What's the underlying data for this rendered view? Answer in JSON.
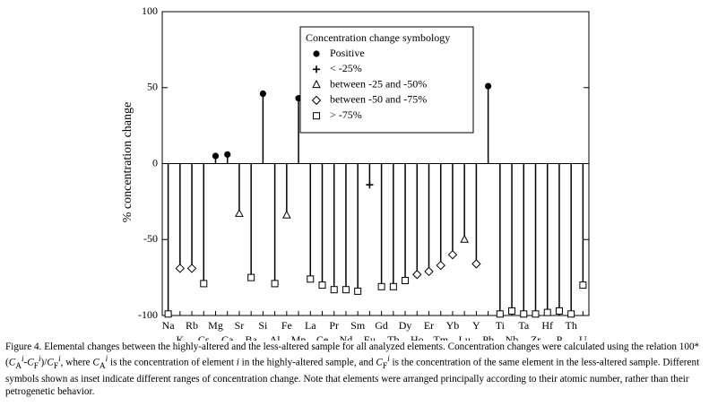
{
  "chart_data": {
    "type": "stem",
    "y_label": "% concentration change",
    "legend_title": "Concentration change symbology",
    "categories": [
      "Na",
      "K",
      "Rb",
      "Cs",
      "Mg",
      "Ca",
      "Sr",
      "Ba",
      "Si",
      "Al",
      "Fe",
      "Mn",
      "La",
      "Ce",
      "Pr",
      "Nd",
      "Sm",
      "Eu",
      "Gd",
      "Tb",
      "Dy",
      "Ho",
      "Er",
      "Tm",
      "Yb",
      "Lu",
      "Y",
      "Pb",
      "Ti",
      "Nb",
      "Ta",
      "Zr",
      "Hf",
      "P",
      "Th",
      "U"
    ],
    "series": [
      {
        "name": "Positive",
        "marker": "circle",
        "color": "#000000",
        "values": [
          null,
          null,
          null,
          null,
          5,
          6,
          null,
          null,
          46,
          null,
          null,
          43,
          null,
          null,
          null,
          null,
          null,
          null,
          null,
          null,
          null,
          null,
          null,
          null,
          null,
          null,
          null,
          51,
          null,
          null,
          null,
          null,
          null,
          null,
          null,
          null
        ]
      },
      {
        "name": "< -25%",
        "marker": "plus",
        "color": "#000000",
        "values": [
          null,
          null,
          null,
          null,
          null,
          null,
          null,
          null,
          null,
          null,
          null,
          null,
          null,
          null,
          null,
          null,
          null,
          -14,
          null,
          null,
          null,
          null,
          null,
          null,
          null,
          null,
          null,
          null,
          null,
          null,
          null,
          null,
          null,
          null,
          null,
          null
        ]
      },
      {
        "name": "between -25 and -50%",
        "marker": "triangle",
        "color": "#000000",
        "values": [
          null,
          null,
          null,
          null,
          null,
          null,
          -33,
          null,
          null,
          null,
          -34,
          null,
          null,
          null,
          null,
          null,
          null,
          null,
          null,
          null,
          null,
          null,
          null,
          null,
          null,
          -50,
          null,
          null,
          null,
          null,
          null,
          null,
          null,
          null,
          null,
          null
        ]
      },
      {
        "name": "between -50 and -75%",
        "marker": "diamond",
        "color": "#000000",
        "values": [
          null,
          -69,
          -69,
          null,
          null,
          null,
          null,
          null,
          null,
          null,
          null,
          null,
          null,
          null,
          null,
          null,
          null,
          null,
          null,
          null,
          null,
          -73,
          -71,
          -67,
          -60,
          null,
          -66,
          null,
          null,
          null,
          null,
          null,
          null,
          null,
          null,
          null
        ]
      },
      {
        "name": "> -75%",
        "marker": "square",
        "color": "#000000",
        "values": [
          -99,
          null,
          null,
          -79,
          null,
          null,
          null,
          -75,
          null,
          -79,
          null,
          null,
          -76,
          -80,
          -83,
          -83,
          -84,
          null,
          -81,
          -81,
          -77,
          null,
          null,
          null,
          null,
          null,
          null,
          null,
          -99,
          -97,
          -99,
          -99,
          -98,
          -97,
          -99,
          -80
        ]
      }
    ],
    "ylim": [
      -100,
      100
    ],
    "yticks": [
      -100,
      -50,
      0,
      50,
      100
    ],
    "legend_position": "top-center",
    "caption": [
      "Figure 4. Elemental changes between the highly-altered and the less-altered sample for all analyzed elements. Concentration changes were calculated using the relation 100*(",
      "C",
      "A",
      "i",
      "-",
      "C",
      "F",
      "i",
      ")/",
      "C",
      "F",
      "i",
      ", where ",
      "C",
      "A",
      "i",
      " is the concentration of element ",
      "i",
      " in the highly-altered sample, and ",
      "C",
      "F",
      "i",
      " is the concentration of the same element in the less-altered sample. Different symbols shown as inset indicate different ranges of concentration change. Note that elements were arranged principally according to their atomic number, rather than their petrogenetic behavior."
    ]
  }
}
